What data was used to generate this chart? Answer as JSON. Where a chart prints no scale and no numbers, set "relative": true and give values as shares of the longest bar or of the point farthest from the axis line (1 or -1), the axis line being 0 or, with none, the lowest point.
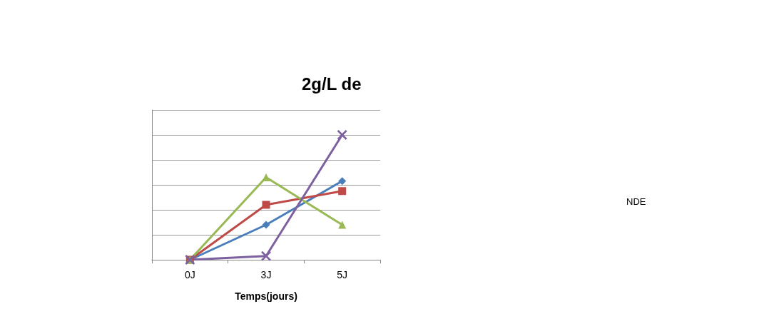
{
  "chart_data": {
    "type": "line",
    "title": "2g/L de",
    "xlabel": "Temps(jours)",
    "relative": true,
    "grid": "y",
    "categories": [
      "0J",
      "3J",
      "5J"
    ],
    "annotations": [
      "NDE"
    ],
    "series": [
      {
        "color": "#4a7ebb",
        "marker": "diamond",
        "values": [
          0,
          0.28,
          0.63
        ]
      },
      {
        "color": "#be4b48",
        "marker": "square",
        "values": [
          0,
          0.44,
          0.55
        ]
      },
      {
        "color": "#98b954",
        "marker": "triangle",
        "values": [
          0,
          0.66,
          0.28
        ]
      },
      {
        "color": "#7d60a0",
        "marker": "cross",
        "values": [
          0,
          0.03,
          1
        ]
      }
    ]
  }
}
